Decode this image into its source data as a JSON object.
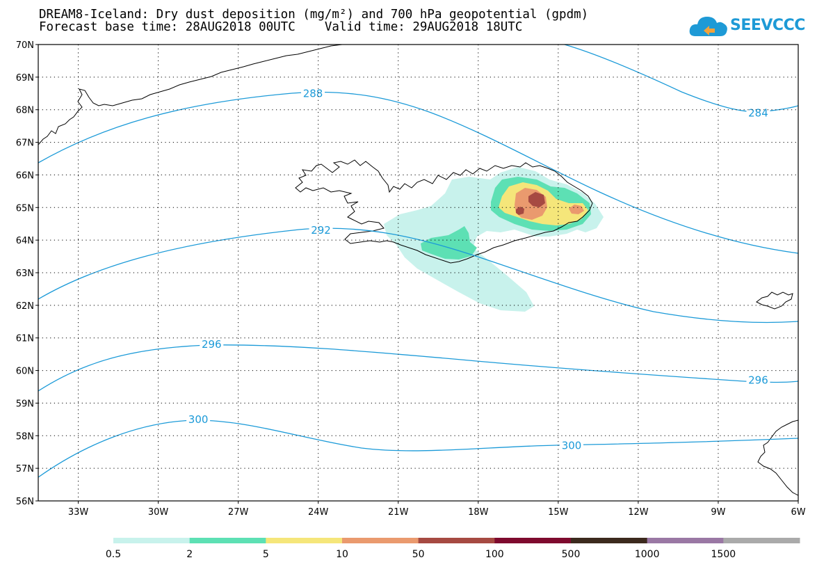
{
  "title": {
    "line1": "DREAM8-Iceland: Dry dust deposition (mg/m²) and 700 hPa geopotential (gpdm)",
    "line2": "Forecast base time: 28AUG2018 00UTC    Valid time: 29AUG2018 18UTC"
  },
  "logo": {
    "text": "SEEVCCC",
    "icon": "cloud-icon",
    "color": "#1e9ad6"
  },
  "map": {
    "lat_range": [
      56,
      70
    ],
    "lon_range": [
      -34.5,
      -6
    ],
    "lat_ticks": [
      "70N",
      "69N",
      "68N",
      "67N",
      "66N",
      "65N",
      "64N",
      "63N",
      "62N",
      "61N",
      "60N",
      "59N",
      "58N",
      "57N",
      "56N"
    ],
    "lon_ticks": [
      {
        "lon": -33,
        "label": "33W"
      },
      {
        "lon": -30,
        "label": "30W"
      },
      {
        "lon": -27,
        "label": "27W"
      },
      {
        "lon": -24,
        "label": "24W"
      },
      {
        "lon": -21,
        "label": "21W"
      },
      {
        "lon": -18,
        "label": "18W"
      },
      {
        "lon": -15,
        "label": "15W"
      },
      {
        "lon": -12,
        "label": "12W"
      },
      {
        "lon": -9,
        "label": "9W"
      },
      {
        "lon": -6,
        "label": "6W"
      }
    ],
    "grid": true,
    "contour_color": "#1b9ad8",
    "contour_labels": [
      {
        "text": "288",
        "lon": -24.2,
        "lat": 68.5
      },
      {
        "text": "284",
        "lon": -7.5,
        "lat": 67.9
      },
      {
        "text": "292",
        "lon": -23.9,
        "lat": 64.3
      },
      {
        "text": "296",
        "lon": -28.0,
        "lat": 60.8
      },
      {
        "text": "296",
        "lon": -7.5,
        "lat": 59.7
      },
      {
        "text": "300",
        "lon": -28.5,
        "lat": 58.5
      },
      {
        "text": "300",
        "lon": -14.5,
        "lat": 57.7
      }
    ],
    "dust_regions": [
      "0.5-2 plume",
      "2-5 south coast",
      "2-5 east",
      "5-10 east",
      "10-50 east",
      "50-100 spot"
    ]
  },
  "colorbar": {
    "labels": [
      "0.5",
      "2",
      "5",
      "10",
      "50",
      "100",
      "500",
      "1000",
      "1500"
    ],
    "colors": [
      "#c8f2ec",
      "#5de0b4",
      "#f5e67a",
      "#ea9a6e",
      "#a64a42",
      "#7e0a2e",
      "#3c2a1e",
      "#9a78a4",
      "#aaaaaa"
    ]
  }
}
